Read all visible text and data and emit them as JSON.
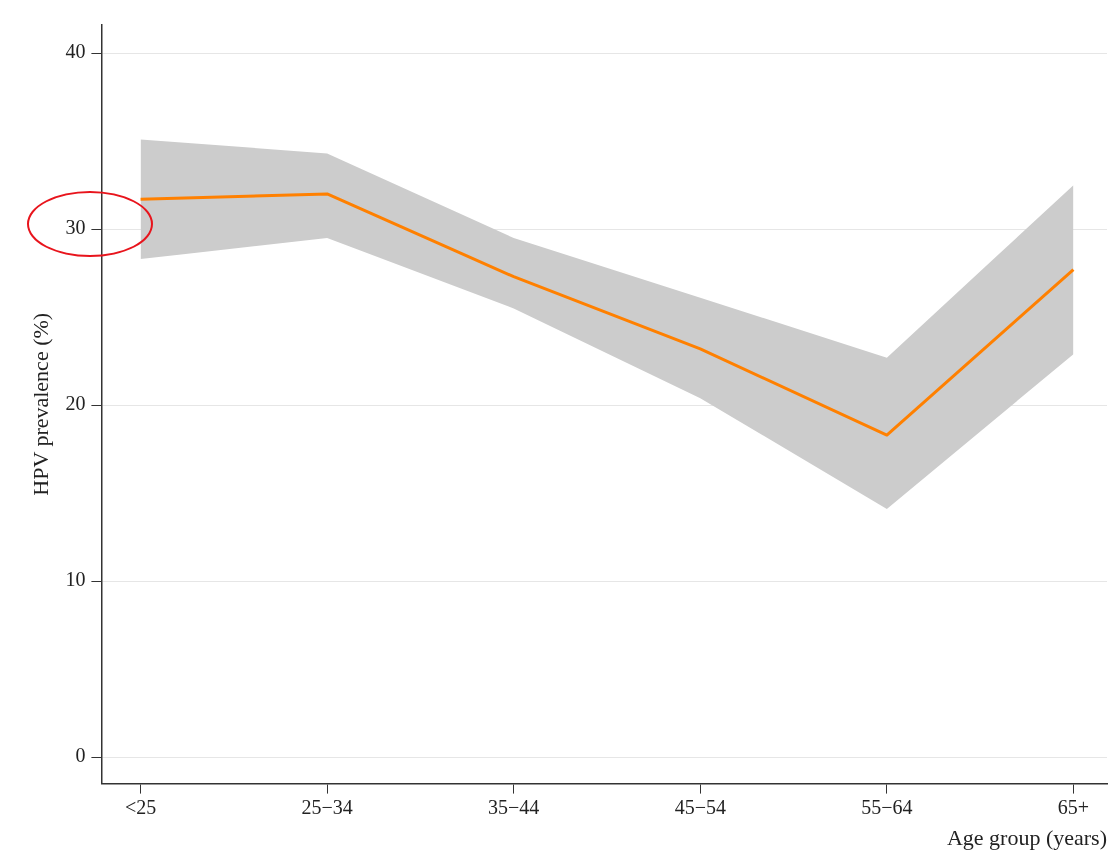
{
  "chart_data": {
    "type": "line",
    "xlabel": "Age group (years)",
    "ylabel": "HPV prevalence (%)",
    "categories": [
      "<25",
      "25−34",
      "35−44",
      "45−54",
      "55−64",
      "65+"
    ],
    "series": [
      {
        "color": "#ff8000",
        "values": [
          31.7,
          32.0,
          27.3,
          23.2,
          18.3,
          27.7
        ],
        "lower": [
          28.3,
          29.5,
          25.5,
          20.4,
          14.1,
          22.9
        ],
        "upper": [
          35.1,
          34.3,
          29.5,
          26.1,
          22.7,
          32.5
        ]
      }
    ],
    "ylim": [
      -1.5,
      41.6
    ],
    "yticks": [
      0,
      10,
      20,
      30,
      40
    ],
    "grid": "y",
    "legend": false,
    "marker": "none",
    "line_style": "solid"
  }
}
